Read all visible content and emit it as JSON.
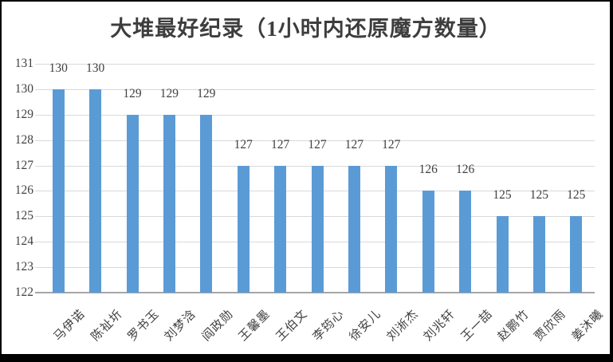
{
  "chart_data": {
    "type": "bar",
    "title": "大堆最好纪录（1小时内还原魔方数量）",
    "categories": [
      "马伊诺",
      "陈祉圻",
      "罗书玉",
      "刘梦浛",
      "阎政勋",
      "王馨墨",
      "王伯文",
      "李筠心",
      "徐安儿",
      "刘淅杰",
      "刘兆轩",
      "王一喆",
      "赵鹏竹",
      "贾欣雨",
      "姜沐曦"
    ],
    "values": [
      130,
      130,
      129,
      129,
      129,
      127,
      127,
      127,
      127,
      127,
      126,
      126,
      125,
      125,
      125
    ],
    "ylim": [
      122,
      131
    ],
    "yticks": [
      122,
      123,
      124,
      125,
      126,
      127,
      128,
      129,
      130,
      131
    ],
    "grid": true,
    "legend": "none",
    "data_labels_shown": true,
    "x_label_rotation_deg": -45,
    "colors": {
      "bar": "#5B9BD5",
      "gridline": "#D9D9D9",
      "axis_line": "#A6A6A6",
      "text": "#404040",
      "title_text": "#3D3D3D",
      "frame_border": "#000000",
      "background": "#FFFFFF"
    }
  }
}
